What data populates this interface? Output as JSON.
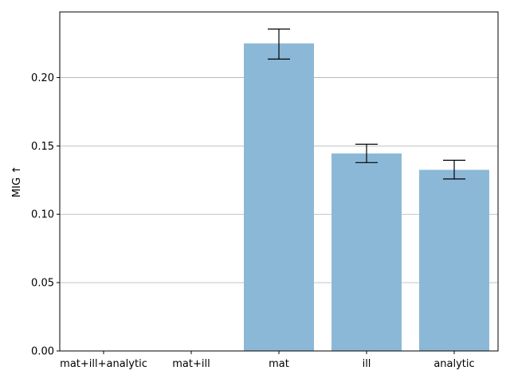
{
  "chart_data": {
    "type": "bar",
    "categories": [
      "mat+ill+analytic",
      "mat+ill",
      "mat",
      "ill",
      "analytic"
    ],
    "values": [
      0,
      0,
      0.225,
      0.1445,
      0.1325
    ],
    "error_low": [
      null,
      null,
      0.2135,
      0.1378,
      0.1258
    ],
    "error_high": [
      null,
      null,
      0.2355,
      0.1512,
      0.1395
    ],
    "title": "",
    "xlabel": "",
    "ylabel": "MIG ↑",
    "ylim": [
      0,
      0.248
    ],
    "yticks": [
      0.0,
      0.05,
      0.1,
      0.15,
      0.2
    ],
    "ytick_labels": [
      "0.00",
      "0.05",
      "0.10",
      "0.15",
      "0.20"
    ],
    "grid": "y",
    "bar_color": "#8cb8d8",
    "error_color": "#000000"
  }
}
